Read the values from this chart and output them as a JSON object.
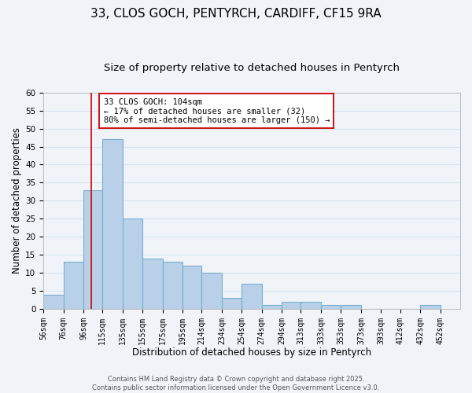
{
  "title": "33, CLOS GOCH, PENTYRCH, CARDIFF, CF15 9RA",
  "subtitle": "Size of property relative to detached houses in Pentyrch",
  "xlabel": "Distribution of detached houses by size in Pentyrch",
  "ylabel": "Number of detached properties",
  "bar_color": "#b8d0e8",
  "bar_edge_color": "#7aaed0",
  "bin_edges": [
    56,
    76,
    96,
    115,
    135,
    155,
    175,
    195,
    214,
    234,
    254,
    274,
    294,
    313,
    333,
    353,
    373,
    393,
    412,
    432,
    452
  ],
  "bar_heights": [
    4,
    13,
    33,
    47,
    25,
    14,
    13,
    12,
    10,
    3,
    7,
    1,
    2,
    2,
    1,
    1,
    0,
    0,
    0,
    1
  ],
  "ylim": [
    0,
    60
  ],
  "yticks": [
    0,
    5,
    10,
    15,
    20,
    25,
    30,
    35,
    40,
    45,
    50,
    55,
    60
  ],
  "xtick_labels": [
    "56sqm",
    "76sqm",
    "96sqm",
    "115sqm",
    "135sqm",
    "155sqm",
    "175sqm",
    "195sqm",
    "214sqm",
    "234sqm",
    "254sqm",
    "274sqm",
    "294sqm",
    "313sqm",
    "333sqm",
    "353sqm",
    "373sqm",
    "393sqm",
    "412sqm",
    "432sqm",
    "452sqm"
  ],
  "vline_x": 104,
  "vline_color": "#cc0000",
  "annotation_line0": "33 CLOS GOCH: 104sqm",
  "annotation_line1": "← 17% of detached houses are smaller (32)",
  "annotation_line2": "80% of semi-detached houses are larger (150) →",
  "annotation_box_color": "#ffffff",
  "annotation_box_edge": "#cc0000",
  "footer1": "Contains HM Land Registry data © Crown copyright and database right 2025.",
  "footer2": "Contains public sector information licensed under the Open Government Licence v3.0.",
  "background_color": "#f0f4f8",
  "grid_color": "#d8e4f0",
  "title_fontsize": 11,
  "subtitle_fontsize": 9.5,
  "axis_label_fontsize": 8.5,
  "tick_fontsize": 7.5,
  "annotation_fontsize": 7.5,
  "footer_fontsize": 6.0
}
